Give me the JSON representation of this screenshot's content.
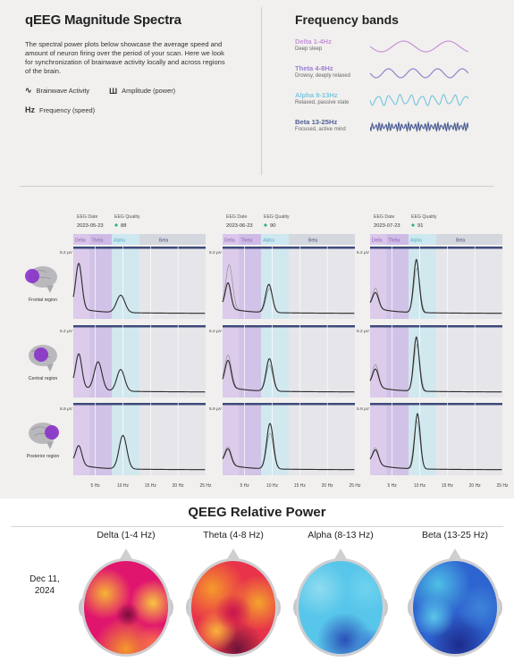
{
  "intro": {
    "title": "qEEG Magnitude Spectra",
    "description": "The spectral power plots below showcase the average speed and amount of neuron firing over the period of your scan. Here we look for synchronization of brainwave activity locally and across regions of the brain.",
    "legend": [
      {
        "icon": "brainwave-icon",
        "label": "Brainwave Activity"
      },
      {
        "icon": "amplitude-icon",
        "label": "Amplitude (power)"
      },
      {
        "icon": "frequency-icon",
        "label": "Frequency (speed)"
      }
    ]
  },
  "bands": {
    "title": "Frequency bands",
    "items": [
      {
        "name": "Delta 1-4Hz",
        "desc": "Deep sleep",
        "color": "#c792d8"
      },
      {
        "name": "Theta 4-8Hz",
        "desc": "Drowsy, deeply relaxed",
        "color": "#9a7fcf"
      },
      {
        "name": "Alpha 8-13Hz",
        "desc": "Relaxed, passive state",
        "color": "#7cc7de"
      },
      {
        "name": "Beta 13-25Hz",
        "desc": "Focused, active mind",
        "color": "#4f5f96"
      }
    ]
  },
  "legend_icons": {
    "brainwave": "∿",
    "amplitude": "Ш",
    "frequency": "Hz"
  },
  "chart_data": {
    "type": "line",
    "xlabel": "",
    "ylabel": "",
    "x_ticks": [
      "5 Hz",
      "10 Hz",
      "15 Hz",
      "20 Hz",
      "25 Hz"
    ],
    "xlim": [
      1,
      25
    ],
    "band_labels": [
      "Delta",
      "Theta",
      "Alpha",
      "Beta"
    ],
    "band_ranges": [
      [
        1,
        4
      ],
      [
        4,
        8
      ],
      [
        8,
        13
      ],
      [
        13,
        25
      ]
    ],
    "band_colors": [
      "#d9c6ea",
      "#cdbbe6",
      "#cde8f0",
      "#d5d7df"
    ],
    "regions": [
      "Frontal region",
      "Central region",
      "Posterior region"
    ],
    "region_icons": [
      "brain-frontal-icon",
      "brain-central-icon",
      "brain-posterior-icon"
    ],
    "ymax_labels": [
      "6.2 µV",
      "6.2 µV",
      "5.9 µV"
    ],
    "panels": [
      {
        "date_label": "EEG Date",
        "date": "2023-05-23",
        "quality_label": "EEG Quality",
        "quality": "88",
        "rows": [
          {
            "peaks": [
              [
                2.0,
                4.1,
                0.55
              ],
              [
                9.6,
                1.6,
                0.75
              ]
            ],
            "ref": []
          },
          {
            "peaks": [
              [
                2.0,
                3.0,
                0.55
              ],
              [
                5.5,
                2.6,
                0.7
              ],
              [
                9.6,
                2.0,
                0.7
              ]
            ],
            "ref": []
          },
          {
            "peaks": [
              [
                2.0,
                1.7,
                0.55
              ],
              [
                10.0,
                3.1,
                0.7
              ]
            ],
            "ref": []
          }
        ]
      },
      {
        "date_label": "EEG Date",
        "date": "2023-06-23",
        "quality_label": "EEG Quality",
        "quality": "90",
        "rows": [
          {
            "peaks": [
              [
                2.0,
                2.3,
                0.5
              ],
              [
                9.4,
                2.6,
                0.6
              ]
            ],
            "ref": [
              [
                2.2,
                4.0,
                0.6
              ],
              [
                9.5,
                2.2,
                0.6
              ]
            ]
          },
          {
            "peaks": [
              [
                2.0,
                2.4,
                0.55
              ],
              [
                9.5,
                3.0,
                0.6
              ]
            ],
            "ref": [
              [
                2.0,
                2.9,
                0.6
              ],
              [
                9.5,
                2.4,
                0.6
              ]
            ]
          },
          {
            "peaks": [
              [
                2.0,
                1.4,
                0.55
              ],
              [
                9.6,
                4.2,
                0.6
              ]
            ],
            "ref": [
              [
                2.0,
                1.6,
                0.6
              ],
              [
                9.6,
                3.3,
                0.6
              ]
            ]
          }
        ]
      },
      {
        "date_label": "EEG Date",
        "date": "2023-07-23",
        "quality_label": "EEG Quality",
        "quality": "91",
        "rows": [
          {
            "peaks": [
              [
                2.0,
                1.4,
                0.55
              ],
              [
                9.4,
                4.9,
                0.5
              ]
            ],
            "ref": [
              [
                2.0,
                1.8,
                0.55
              ],
              [
                9.5,
                4.1,
                0.55
              ]
            ]
          },
          {
            "peaks": [
              [
                2.0,
                1.6,
                0.55
              ],
              [
                9.4,
                5.0,
                0.5
              ]
            ],
            "ref": [
              [
                2.0,
                2.0,
                0.55
              ],
              [
                9.5,
                4.3,
                0.55
              ]
            ]
          },
          {
            "peaks": [
              [
                2.0,
                1.3,
                0.55
              ],
              [
                9.6,
                5.1,
                0.5
              ]
            ],
            "ref": [
              [
                2.0,
                1.5,
                0.55
              ],
              [
                9.5,
                4.4,
                0.55
              ]
            ]
          }
        ]
      }
    ]
  },
  "relative_power": {
    "title": "QEEG Relative Power",
    "date": "Dec 11, 2024",
    "columns": [
      "Delta (1-4 Hz)",
      "Theta (4-8 Hz)",
      "Alpha (8-13 Hz)",
      "Beta (13-25 Hz)"
    ],
    "maps": [
      {
        "base": "#e0156e",
        "blobs": [
          [
            "#f6b636",
            0.25,
            0.35,
            0.28
          ],
          [
            "#f8c640",
            0.82,
            0.45,
            0.25
          ],
          [
            "#f39a2a",
            0.5,
            0.95,
            0.35
          ],
          [
            "#7a1039",
            0.52,
            0.58,
            0.13
          ],
          [
            "#ff7a4a",
            0.85,
            0.9,
            0.22
          ]
        ]
      },
      {
        "base": "#e8334a",
        "blobs": [
          [
            "#f59a2a",
            0.25,
            0.3,
            0.35
          ],
          [
            "#f4a42c",
            0.8,
            0.45,
            0.3
          ],
          [
            "#6d1238",
            0.55,
            0.95,
            0.3
          ],
          [
            "#f7b43a",
            0.3,
            0.75,
            0.22
          ],
          [
            "#c9184c",
            0.5,
            0.55,
            0.2
          ]
        ]
      },
      {
        "base": "#58c6ea",
        "blobs": [
          [
            "#8fdcf0",
            0.25,
            0.3,
            0.3
          ],
          [
            "#2a4fb8",
            0.55,
            0.85,
            0.3
          ],
          [
            "#3f7fd5",
            0.85,
            0.9,
            0.18
          ],
          [
            "#6fd3ef",
            0.8,
            0.3,
            0.25
          ]
        ]
      },
      {
        "base": "#2e64d0",
        "blobs": [
          [
            "#4fbfe6",
            0.3,
            0.25,
            0.35
          ],
          [
            "#1d2a8c",
            0.55,
            0.9,
            0.35
          ],
          [
            "#5ac8ea",
            0.25,
            0.6,
            0.22
          ],
          [
            "#3e84d8",
            0.8,
            0.5,
            0.25
          ]
        ]
      }
    ]
  }
}
